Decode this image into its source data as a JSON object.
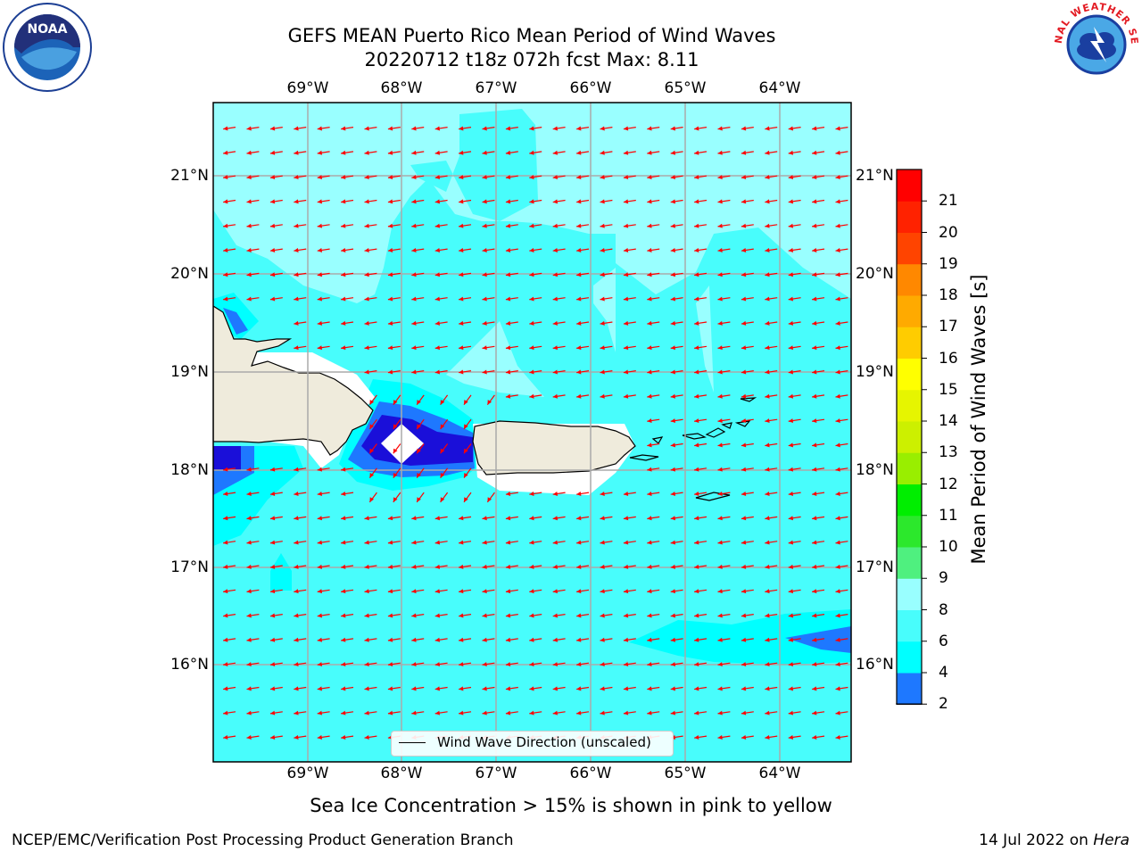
{
  "header": {
    "title_line1": "GEFS MEAN Puerto Rico Mean Period of Wind Waves",
    "title_line2": "20220712 t18z 072h fcst   Max: 8.11"
  },
  "logos": {
    "left": "NOAA",
    "right": "NATIONAL WEATHER SERVICE"
  },
  "map": {
    "lon_ticks": [
      "69°W",
      "68°W",
      "67°W",
      "66°W",
      "65°W",
      "64°W"
    ],
    "lat_ticks": [
      "21°N",
      "20°N",
      "19°N",
      "18°N",
      "17°N",
      "16°N"
    ],
    "legend_label": "Wind Wave Direction (unscaled)",
    "land_color": "#efebdc",
    "arrow_color": "#ff0000"
  },
  "colorbar": {
    "title": "Mean Period of Wind Waves [s]",
    "labels": [
      "2",
      "4",
      "6",
      "8",
      "9",
      "10",
      "11",
      "12",
      "13",
      "14",
      "15",
      "16",
      "17",
      "18",
      "19",
      "20",
      "21"
    ],
    "colors": [
      "#1a0fd9",
      "#1e78ff",
      "#00ffff",
      "#48fdfc",
      "#99ffff",
      "#4ff07f",
      "#2ce82c",
      "#00ee00",
      "#99ee00",
      "#ccf000",
      "#e6f500",
      "#ffff00",
      "#ffcc00",
      "#ffaa00",
      "#ff8800",
      "#ff4400",
      "#ff2200",
      "#ff0000"
    ]
  },
  "notes": {
    "ice": "Sea Ice Concentration > 15% is shown in pink to yellow",
    "footer_left": "NCEP/EMC/Verification Post Processing Product Generation Branch",
    "footer_date": "14 Jul 2022 on ",
    "footer_host": "Hera"
  }
}
